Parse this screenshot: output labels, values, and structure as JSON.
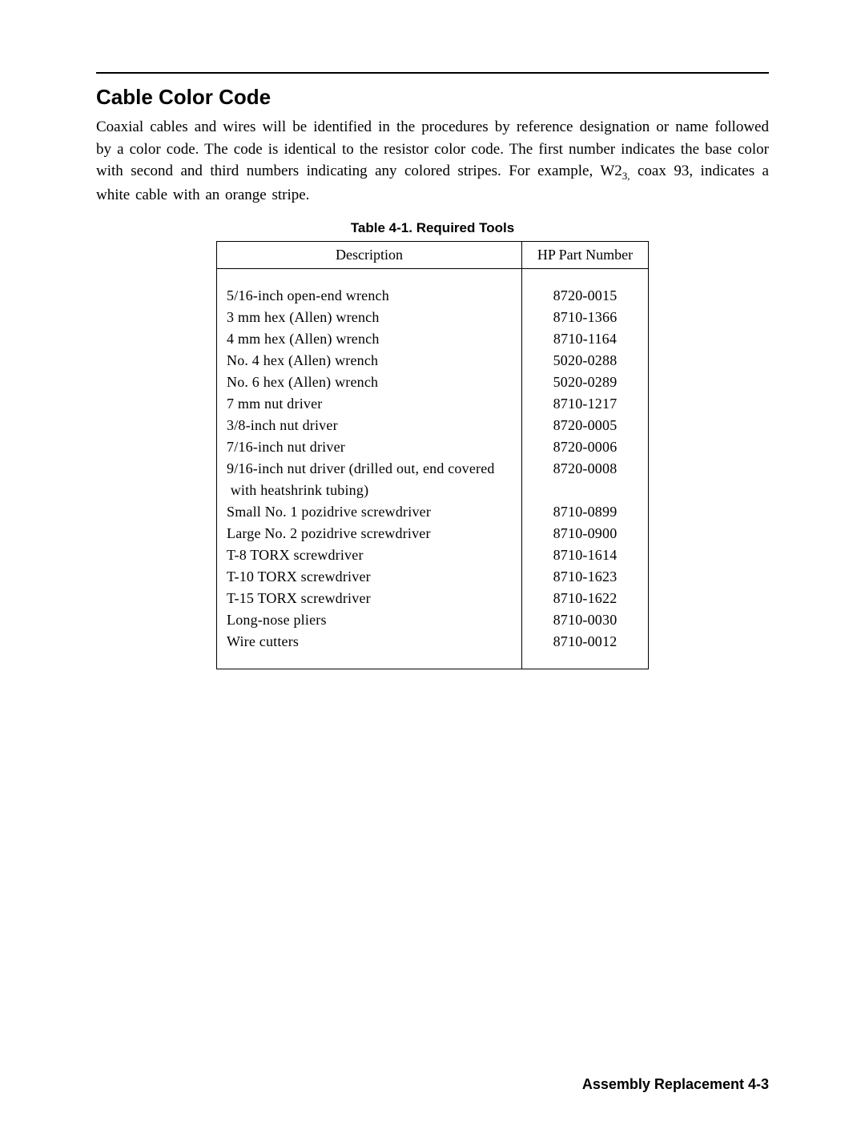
{
  "page": {
    "hr_color": "#000000",
    "bg_color": "#ffffff",
    "text_color": "#000000"
  },
  "section": {
    "title": "Cable Color Code",
    "paragraph_pre": "Coaxial cables and wires will be identified in the procedures by reference designation or name followed by a color code. The code is identical to the resistor color code. The first number indicates the base color with second and third numbers indicating any colored stripes. For example, W2",
    "paragraph_sub": "3,",
    "paragraph_post": " coax 93, indicates a white cable with an orange stripe."
  },
  "table": {
    "caption": "Table 4-1. Required Tools",
    "columns": [
      "Description",
      "HP Part Number"
    ],
    "rows": [
      {
        "desc": "5/16-inch open-end wrench",
        "part": "8720-0015"
      },
      {
        "desc": "3 mm hex (Allen) wrench",
        "part": "8710-1366"
      },
      {
        "desc": "4 mm hex (Allen) wrench",
        "part": "8710-1164"
      },
      {
        "desc": "No. 4 hex (Allen) wrench",
        "part": "5020-0288"
      },
      {
        "desc": "No. 6 hex (Allen) wrench",
        "part": "5020-0289"
      },
      {
        "desc": "7 mm nut driver",
        "part": "8710-1217"
      },
      {
        "desc": "3/8-inch nut driver",
        "part": "8720-0005"
      },
      {
        "desc": "7/16-inch nut driver",
        "part": "8720-0006"
      },
      {
        "desc": "9/16-inch nut driver (drilled out, end covered",
        "part": "8720-0008"
      },
      {
        "desc": " with heatshrink tubing)",
        "part": ""
      },
      {
        "desc": "Small No. 1 pozidrive screwdriver",
        "part": "8710-0899"
      },
      {
        "desc": "Large No. 2 pozidrive screwdriver",
        "part": "8710-0900"
      },
      {
        "desc": "T-8 TORX screwdriver",
        "part": "8710-1614"
      },
      {
        "desc": "T-10 TORX screwdriver",
        "part": "8710-1623"
      },
      {
        "desc": "T-15 TORX screwdriver",
        "part": "8710-1622"
      },
      {
        "desc": "Long-nose pliers",
        "part": "8710-0030"
      },
      {
        "desc": "Wire cutters",
        "part": "8710-0012"
      }
    ]
  },
  "footer": {
    "text": "Assembly Replacement 4-3"
  }
}
